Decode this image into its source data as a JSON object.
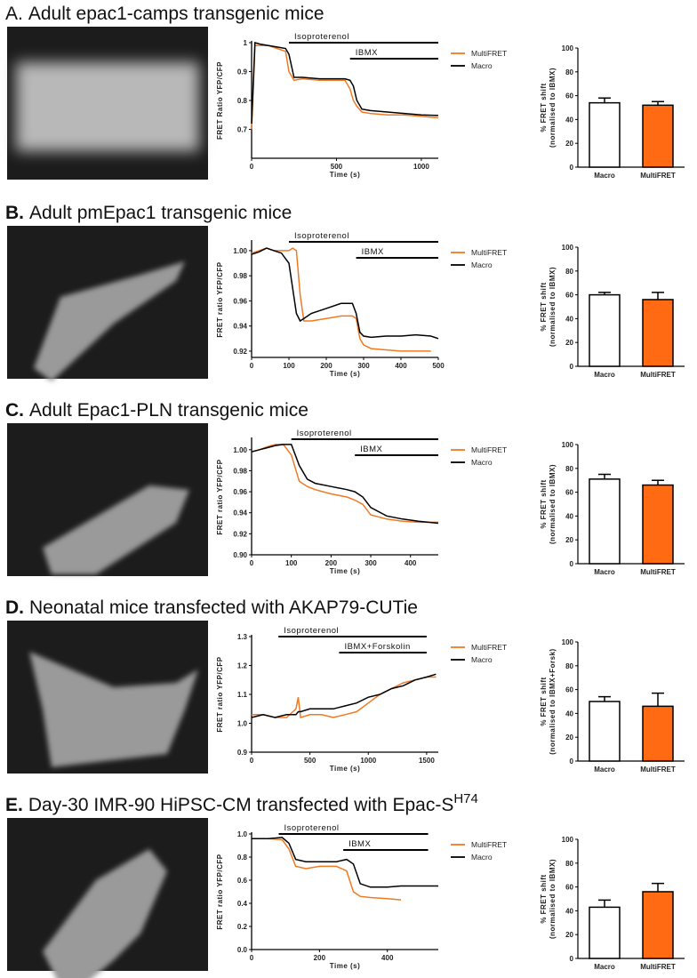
{
  "panels": [
    {
      "label": "A.",
      "title": "Adult epac1-camps transgenic mice"
    },
    {
      "label": "B.",
      "title": "Adult pmEpac1 transgenic mice"
    },
    {
      "label": "C.",
      "title": "Adult Epac1-PLN transgenic mice"
    },
    {
      "label": "D.",
      "title": "Neonatal mice transfected with AKAP79-CUTie"
    },
    {
      "label": "E.",
      "title": "Day-30 IMR-90 HiPSC-CM transfected with Epac-S",
      "title_superscript": "H74"
    }
  ],
  "chart_data": [
    {
      "type": "line",
      "xlabel": "Time (s)",
      "ylabel": "FRET Ratio YFP/CFP",
      "xlim": [
        0,
        1100
      ],
      "xticks": [
        0,
        500,
        1000
      ],
      "ylim": [
        0.6,
        1.0
      ],
      "yticks": [
        0.7,
        0.8,
        0.9,
        1.0
      ],
      "annotations": [
        {
          "label": "Isoproterenol",
          "start": 220,
          "end": 1100
        },
        {
          "label": "IBMX",
          "start": 580,
          "end": 1100
        }
      ],
      "x": [
        0,
        20,
        50,
        100,
        150,
        200,
        220,
        250,
        300,
        400,
        500,
        550,
        580,
        600,
        620,
        650,
        700,
        800,
        900,
        1000,
        1100
      ],
      "series": [
        {
          "name": "MultiFRET",
          "color": "#f07a23",
          "values": [
            0.7,
            0.99,
            0.99,
            0.99,
            0.98,
            0.97,
            0.9,
            0.87,
            0.875,
            0.87,
            0.87,
            0.87,
            0.84,
            0.8,
            0.78,
            0.76,
            0.755,
            0.75,
            0.75,
            0.745,
            0.74
          ]
        },
        {
          "name": "Macro",
          "color": "#000000",
          "values": [
            0.72,
            1.0,
            0.995,
            0.99,
            0.985,
            0.98,
            0.96,
            0.88,
            0.88,
            0.875,
            0.875,
            0.875,
            0.87,
            0.85,
            0.8,
            0.77,
            0.765,
            0.76,
            0.755,
            0.75,
            0.748
          ]
        }
      ]
    },
    {
      "type": "bar",
      "ylabel": [
        "% FRET shift",
        "(normalised to IBMX)"
      ],
      "ylim": [
        0,
        100
      ],
      "yticks": [
        0,
        20,
        40,
        60,
        80,
        100
      ],
      "categories": [
        "Macro",
        "MultiFRET"
      ],
      "values": [
        54,
        52
      ],
      "errors": [
        4,
        3
      ],
      "colors": [
        "#ffffff",
        "#ff6a13"
      ]
    },
    {
      "type": "line",
      "xlabel": "Time (s)",
      "ylabel": "FRET ratio YFP/CFP",
      "xlim": [
        0,
        500
      ],
      "xticks": [
        0,
        100,
        200,
        300,
        400,
        500
      ],
      "ylim": [
        0.915,
        1.007
      ],
      "yticks": [
        0.92,
        0.94,
        0.96,
        0.98,
        {
          "value": 1.0,
          "label": "1.00"
        }
      ],
      "annotations": [
        {
          "label": "Isoproterenol",
          "start": 100,
          "end": 500
        },
        {
          "label": "IBMX",
          "start": 280,
          "end": 500
        }
      ],
      "x": [
        0,
        20,
        40,
        60,
        80,
        100,
        110,
        120,
        130,
        140,
        160,
        200,
        240,
        270,
        280,
        290,
        300,
        320,
        360,
        400,
        440,
        480,
        500
      ],
      "series": [
        {
          "name": "MultiFRET",
          "color": "#f07a23",
          "values": [
            0.998,
            1.0,
            1.002,
            1.0,
            1.0,
            1.0,
            1.002,
            1.0,
            0.965,
            0.944,
            0.944,
            0.946,
            0.948,
            0.948,
            0.946,
            0.93,
            0.925,
            0.922,
            0.921,
            0.92,
            0.92,
            0.92,
            null
          ]
        },
        {
          "name": "Macro",
          "color": "#000000",
          "values": [
            0.997,
            0.999,
            1.002,
            1.0,
            0.998,
            0.99,
            0.97,
            0.95,
            0.944,
            0.946,
            0.95,
            0.954,
            0.958,
            0.958,
            0.95,
            0.935,
            0.932,
            0.931,
            0.932,
            0.932,
            0.933,
            0.932,
            0.93
          ]
        }
      ]
    },
    {
      "type": "bar",
      "ylabel": [
        "% FRET shift",
        "(normalised to IBMX)"
      ],
      "ylim": [
        0,
        100
      ],
      "yticks": [
        0,
        20,
        40,
        60,
        80,
        100
      ],
      "categories": [
        "Macro",
        "MultiFRET"
      ],
      "values": [
        60,
        56
      ],
      "errors": [
        2,
        6
      ],
      "colors": [
        "#ffffff",
        "#ff6a13"
      ]
    },
    {
      "type": "line",
      "xlabel": "Time (s)",
      "ylabel": "FRET ratio YFP/CFP",
      "xlim": [
        0,
        470
      ],
      "xticks": [
        0,
        100,
        200,
        300,
        400
      ],
      "ylim": [
        0.9,
        1.01
      ],
      "yticks": [
        {
          "value": 0.9,
          "label": "0.90"
        },
        0.92,
        0.94,
        0.96,
        0.98,
        {
          "value": 1.0,
          "label": "1.00"
        }
      ],
      "annotations": [
        {
          "label": "Isoproterenol",
          "start": 100,
          "end": 470
        },
        {
          "label": "IBMX",
          "start": 260,
          "end": 470
        }
      ],
      "x": [
        0,
        20,
        40,
        60,
        80,
        100,
        120,
        140,
        160,
        200,
        240,
        260,
        280,
        300,
        340,
        380,
        420,
        470
      ],
      "series": [
        {
          "name": "MultiFRET",
          "color": "#f07a23",
          "values": [
            0.998,
            1.0,
            1.003,
            1.005,
            1.005,
            0.995,
            0.97,
            0.965,
            0.962,
            0.958,
            0.955,
            0.952,
            0.948,
            0.938,
            0.934,
            0.932,
            0.931,
            0.931
          ]
        },
        {
          "name": "Macro",
          "color": "#000000",
          "values": [
            0.998,
            1.0,
            1.002,
            1.004,
            1.005,
            1.005,
            0.985,
            0.972,
            0.968,
            0.965,
            0.962,
            0.96,
            0.955,
            0.945,
            0.937,
            0.934,
            0.932,
            0.93
          ]
        }
      ]
    },
    {
      "type": "bar",
      "ylabel": [
        "% FRET shift",
        "(normalised to IBMX)"
      ],
      "ylim": [
        0,
        100
      ],
      "yticks": [
        0,
        20,
        40,
        60,
        80,
        100
      ],
      "categories": [
        "Macro",
        "MultiFRET"
      ],
      "values": [
        71,
        66
      ],
      "errors": [
        4,
        4
      ],
      "colors": [
        "#ffffff",
        "#ff6a13"
      ]
    },
    {
      "type": "line",
      "xlabel": "Time (s)",
      "ylabel": "FRET ratio YFP/CFP",
      "xlim": [
        0,
        1600
      ],
      "xticks": [
        0,
        500,
        1000,
        1500
      ],
      "ylim": [
        0.9,
        1.3
      ],
      "yticks": [
        0.9,
        {
          "value": 1.0,
          "label": "1.0"
        },
        1.1,
        1.2,
        1.3
      ],
      "annotations": [
        {
          "label": "Isoproterenol",
          "start": 230,
          "end": 1500
        },
        {
          "label": "IBMX+Forskolin",
          "start": 750,
          "end": 1500
        }
      ],
      "x": [
        0,
        100,
        200,
        300,
        380,
        400,
        420,
        500,
        600,
        700,
        800,
        900,
        1000,
        1100,
        1200,
        1300,
        1400,
        1500,
        1580
      ],
      "series": [
        {
          "name": "MultiFRET",
          "color": "#f07a23",
          "values": [
            1.03,
            1.03,
            1.02,
            1.02,
            1.05,
            1.09,
            1.02,
            1.03,
            1.03,
            1.02,
            1.03,
            1.04,
            1.07,
            1.1,
            1.12,
            1.14,
            1.15,
            1.16,
            1.16
          ]
        },
        {
          "name": "Macro",
          "color": "#000000",
          "values": [
            1.02,
            1.03,
            1.02,
            1.03,
            1.03,
            1.04,
            1.04,
            1.05,
            1.05,
            1.05,
            1.06,
            1.07,
            1.09,
            1.1,
            1.12,
            1.13,
            1.15,
            1.16,
            1.17
          ]
        }
      ]
    },
    {
      "type": "bar",
      "ylabel": [
        "% FRET shift",
        "(normalised to IBMX+Forsk)"
      ],
      "ylim": [
        0,
        100
      ],
      "yticks": [
        0,
        20,
        40,
        60,
        80,
        100
      ],
      "categories": [
        "Macro",
        "MultiFRET"
      ],
      "values": [
        50,
        46
      ],
      "errors": [
        4,
        11
      ],
      "colors": [
        "#ffffff",
        "#ff6a13"
      ]
    },
    {
      "type": "line",
      "xlabel": "Time (s)",
      "ylabel": "FRET ratio YFP/CFP",
      "xlim": [
        0,
        550
      ],
      "xticks": [
        0,
        200,
        400
      ],
      "ylim": [
        0,
        1.0
      ],
      "yticks": [
        {
          "value": 0,
          "label": "0.0"
        },
        0.2,
        0.4,
        0.6,
        0.8,
        {
          "value": 1.0,
          "label": "1.0"
        }
      ],
      "annotations": [
        {
          "label": "Isoproterenol",
          "start": 80,
          "end": 520
        },
        {
          "label": "IBMX",
          "start": 270,
          "end": 520
        }
      ],
      "x": [
        0,
        50,
        90,
        110,
        130,
        160,
        200,
        250,
        280,
        300,
        320,
        350,
        400,
        440,
        500,
        550
      ],
      "series": [
        {
          "name": "MultiFRET",
          "color": "#f07a23",
          "values": [
            0.96,
            0.96,
            0.95,
            0.87,
            0.72,
            0.7,
            0.72,
            0.72,
            0.68,
            0.5,
            0.46,
            0.45,
            0.44,
            0.43,
            null,
            null
          ]
        },
        {
          "name": "Macro",
          "color": "#000000",
          "values": [
            0.96,
            0.96,
            0.97,
            0.92,
            0.78,
            0.76,
            0.76,
            0.76,
            0.78,
            0.74,
            0.57,
            0.54,
            0.54,
            0.55,
            0.55,
            0.55
          ]
        }
      ]
    },
    {
      "type": "bar",
      "ylabel": [
        "% FRET shift",
        "(normalised to IBMX)"
      ],
      "ylim": [
        0,
        100
      ],
      "yticks": [
        0,
        20,
        40,
        60,
        80,
        100
      ],
      "categories": [
        "Macro",
        "MultiFRET"
      ],
      "values": [
        43,
        56
      ],
      "errors": [
        6,
        7
      ],
      "colors": [
        "#ffffff",
        "#ff6a13"
      ]
    }
  ]
}
